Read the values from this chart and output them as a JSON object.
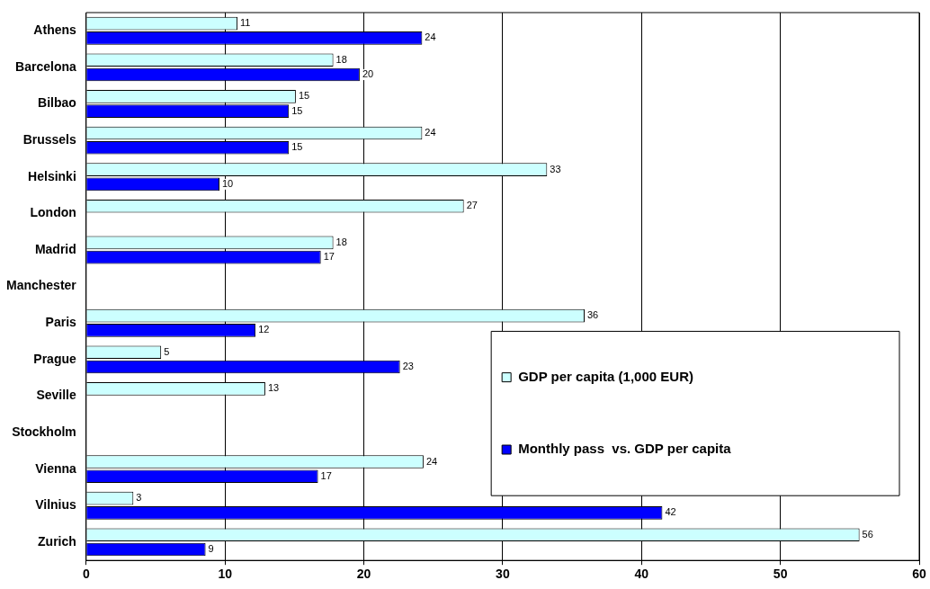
{
  "chart_data": {
    "type": "bar",
    "orientation": "horizontal",
    "categories": [
      "Athens",
      "Barcelona",
      "Bilbao",
      "Brussels",
      "Helsinki",
      "London",
      "Madrid",
      "Manchester",
      "Paris",
      "Prague",
      "Seville",
      "Stockholm",
      "Vienna",
      "Vilnius",
      "Zurich"
    ],
    "series": [
      {
        "name": "GDP per capita (1,000 EUR)",
        "color": "#ccffff",
        "values": [
          10.9,
          17.8,
          15.1,
          24.2,
          33.2,
          27.2,
          17.8,
          null,
          35.9,
          5.4,
          12.9,
          null,
          24.3,
          3.4,
          55.7
        ],
        "value_labels": [
          "11",
          "18",
          "15",
          "24",
          "33",
          "27",
          "18",
          null,
          "36",
          "5",
          "13",
          null,
          "24",
          "3",
          "56"
        ]
      },
      {
        "name": "Monthly pass  vs. GDP per capita",
        "color": "#0000ff",
        "values": [
          24.2,
          19.7,
          14.6,
          14.6,
          9.6,
          null,
          16.9,
          null,
          12.2,
          22.6,
          null,
          null,
          16.7,
          41.5,
          8.6
        ],
        "value_labels": [
          "24",
          "20",
          "15",
          "15",
          "10",
          null,
          "17",
          null,
          "12",
          "23",
          null,
          null,
          "17",
          "42",
          "9"
        ]
      }
    ],
    "xlim": [
      0,
      60
    ],
    "xticks": [
      0,
      10,
      20,
      30,
      40,
      50,
      60
    ],
    "grid": "x",
    "legend": "bottom right"
  }
}
